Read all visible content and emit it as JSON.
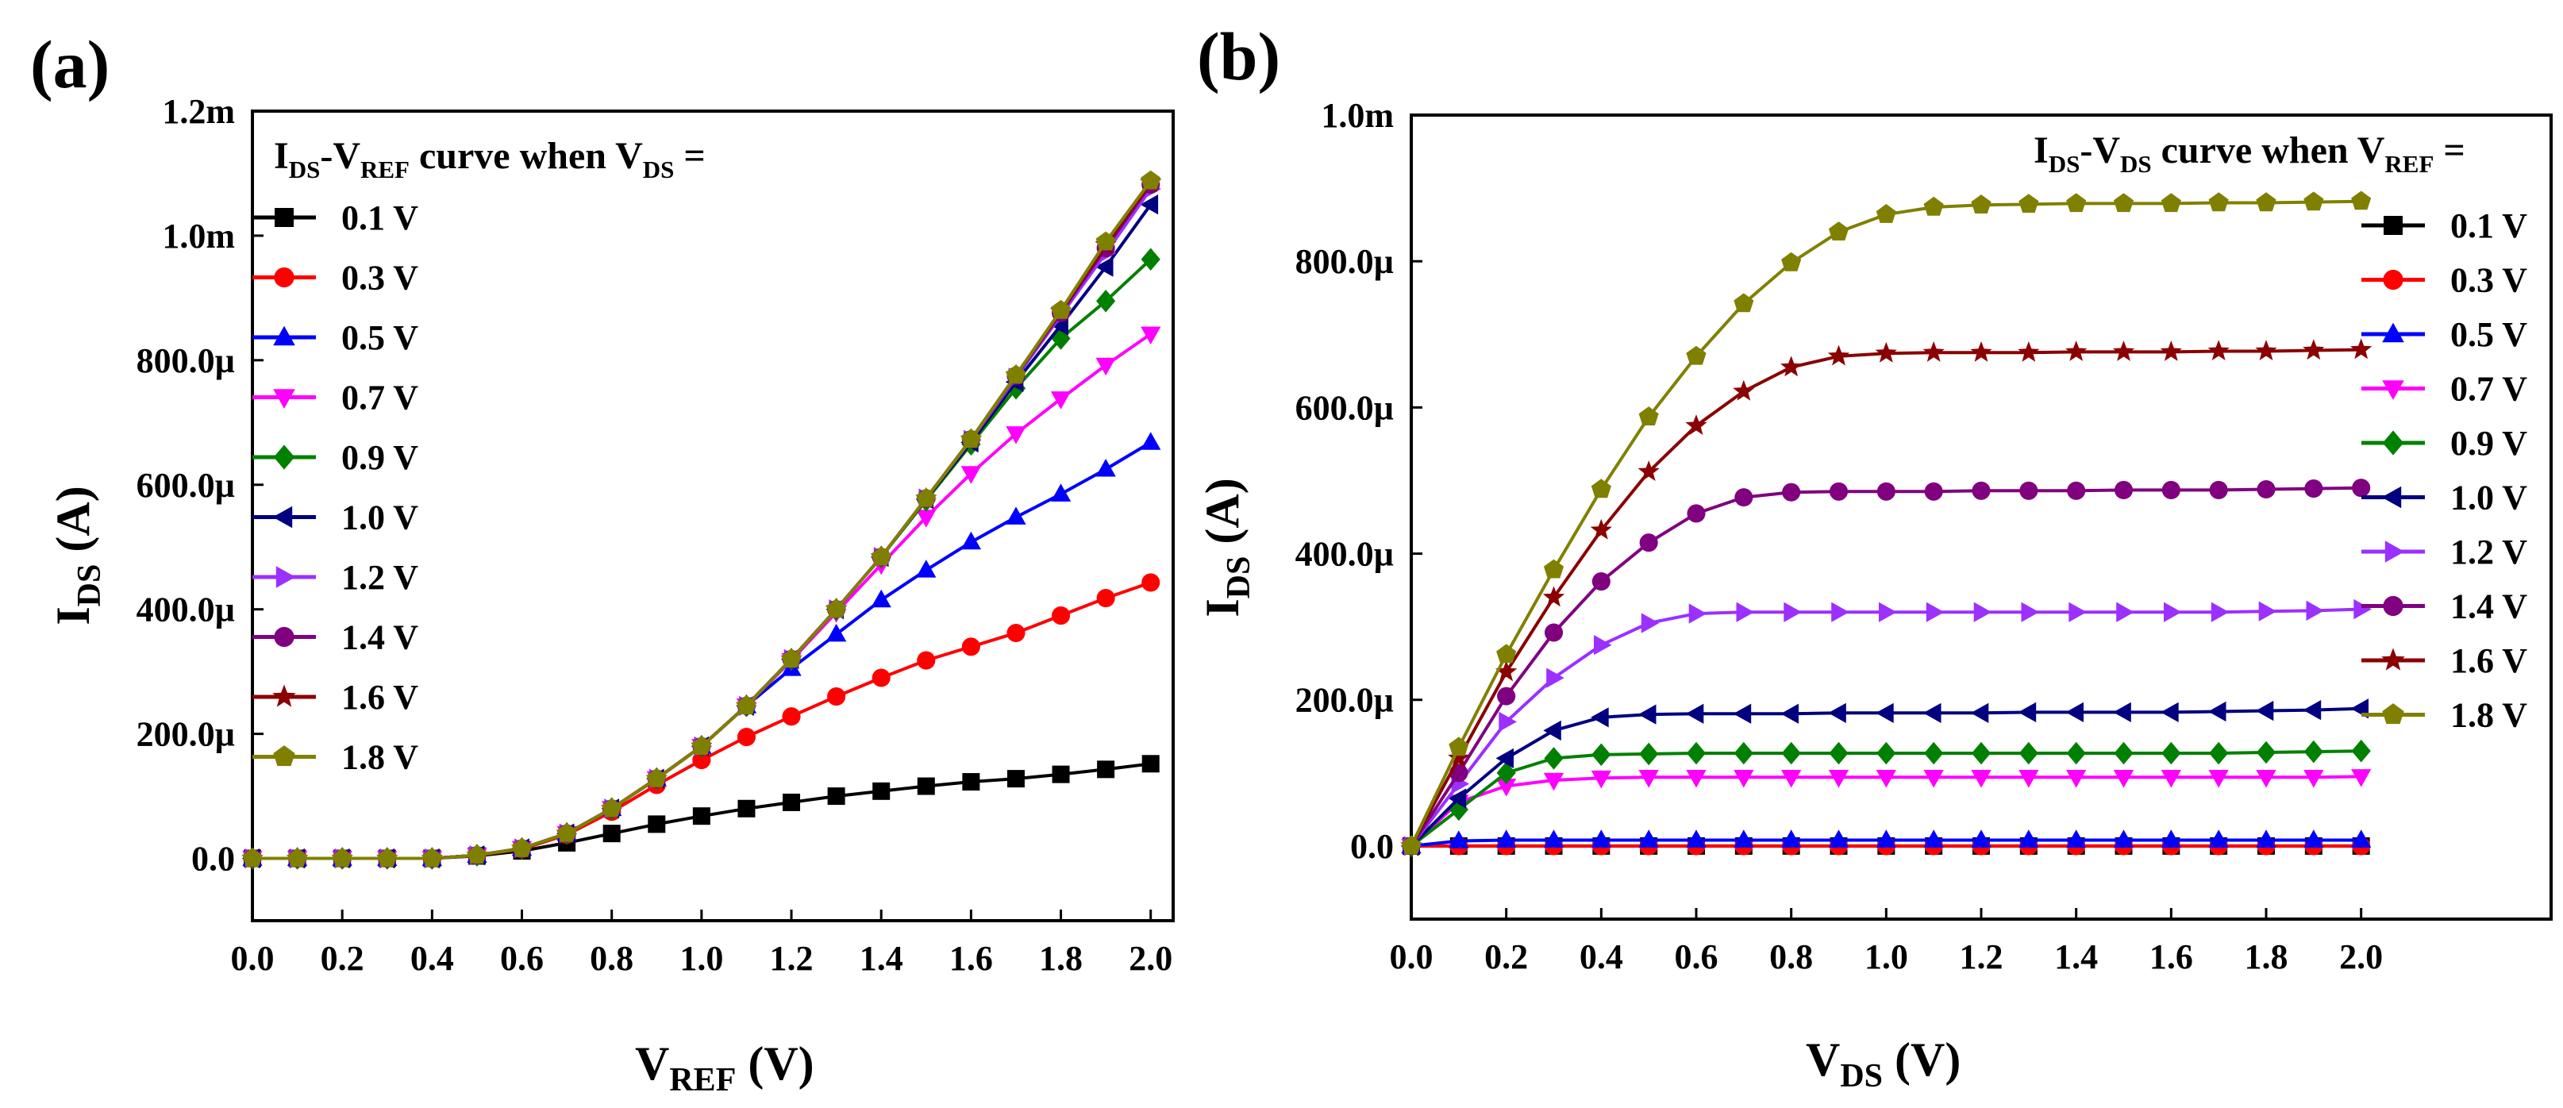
{
  "chart_data": [
    {
      "type": "line",
      "panel_label": "(a)",
      "title": {
        "pre": "I",
        "sub1": "DS",
        "mid": "-V",
        "sub2": "REF",
        "post": " curve when V",
        "sub3": "DS",
        "end": " ="
      },
      "xlabel": {
        "main": "V",
        "sub": "REF",
        "unit": " (V)"
      },
      "ylabel": {
        "main": "I",
        "sub": "DS",
        "unit": " (A)"
      },
      "xlim": [
        0,
        2.05
      ],
      "ylim": [
        -0.1,
        1.2
      ],
      "xticks": [
        0,
        0.2,
        0.4,
        0.6,
        0.8,
        1.0,
        1.2,
        1.4,
        1.6,
        1.8,
        2.0
      ],
      "xtick_labels": [
        "0.0",
        "0.2",
        "0.4",
        "0.6",
        "0.8",
        "1.0",
        "1.2",
        "1.4",
        "1.6",
        "1.8",
        "2.0"
      ],
      "yticks": [
        0,
        0.2,
        0.4,
        0.6,
        0.8,
        1.0,
        1.2
      ],
      "ytick_labels": [
        "0.0",
        "200.0µ",
        "400.0µ",
        "600.0µ",
        "800.0µ",
        "1.0m",
        "1.2m"
      ],
      "y_unit": "mA",
      "legend_position": "top-left",
      "x": [
        0,
        0.1,
        0.2,
        0.3,
        0.4,
        0.5,
        0.6,
        0.7,
        0.8,
        0.9,
        1.0,
        1.1,
        1.2,
        1.3,
        1.4,
        1.5,
        1.6,
        1.7,
        1.8,
        1.9,
        2.0
      ],
      "series": [
        {
          "name": "0.1 V",
          "color": "#000000",
          "marker": "square",
          "values": [
            0,
            0,
            0,
            0,
            0,
            0.004,
            0.012,
            0.025,
            0.04,
            0.055,
            0.068,
            0.08,
            0.09,
            0.1,
            0.108,
            0.116,
            0.123,
            0.128,
            0.135,
            0.143,
            0.152
          ]
        },
        {
          "name": "0.3 V",
          "color": "#ff0000",
          "marker": "circle",
          "values": [
            0,
            0,
            0,
            0,
            0,
            0.005,
            0.015,
            0.038,
            0.075,
            0.118,
            0.158,
            0.195,
            0.228,
            0.26,
            0.29,
            0.318,
            0.34,
            0.362,
            0.39,
            0.418,
            0.443
          ]
        },
        {
          "name": "0.5 V",
          "color": "#0000ff",
          "marker": "triangle-up",
          "values": [
            0,
            0,
            0,
            0,
            0,
            0.005,
            0.016,
            0.04,
            0.08,
            0.128,
            0.18,
            0.245,
            0.305,
            0.36,
            0.415,
            0.463,
            0.508,
            0.548,
            0.585,
            0.625,
            0.668
          ]
        },
        {
          "name": "0.7 V",
          "color": "#ff00ff",
          "marker": "triangle-down",
          "values": [
            0,
            0,
            0,
            0,
            0,
            0.005,
            0.016,
            0.04,
            0.08,
            0.128,
            0.18,
            0.245,
            0.318,
            0.395,
            0.472,
            0.548,
            0.618,
            0.682,
            0.738,
            0.792,
            0.842
          ]
        },
        {
          "name": "0.9 V",
          "color": "#008000",
          "marker": "diamond",
          "values": [
            0,
            0,
            0,
            0,
            0,
            0.005,
            0.016,
            0.04,
            0.08,
            0.128,
            0.18,
            0.245,
            0.32,
            0.4,
            0.484,
            0.575,
            0.665,
            0.755,
            0.835,
            0.895,
            0.962
          ]
        },
        {
          "name": "1.0 V",
          "color": "#000080",
          "marker": "triangle-left",
          "values": [
            0,
            0,
            0,
            0,
            0,
            0.005,
            0.016,
            0.04,
            0.08,
            0.128,
            0.18,
            0.245,
            0.32,
            0.4,
            0.484,
            0.577,
            0.668,
            0.765,
            0.856,
            0.95,
            1.05
          ]
        },
        {
          "name": "1.2 V",
          "color": "#9b30ff",
          "marker": "triangle-right",
          "values": [
            0,
            0,
            0,
            0,
            0,
            0.005,
            0.016,
            0.04,
            0.08,
            0.128,
            0.18,
            0.245,
            0.32,
            0.4,
            0.484,
            0.578,
            0.672,
            0.772,
            0.872,
            0.972,
            1.075
          ]
        },
        {
          "name": "1.4 V",
          "color": "#800080",
          "marker": "circle",
          "values": [
            0,
            0,
            0,
            0,
            0,
            0.005,
            0.016,
            0.04,
            0.08,
            0.128,
            0.18,
            0.245,
            0.32,
            0.4,
            0.484,
            0.578,
            0.673,
            0.775,
            0.876,
            0.98,
            1.082
          ]
        },
        {
          "name": "1.6 V",
          "color": "#8b0000",
          "marker": "star",
          "values": [
            0,
            0,
            0,
            0,
            0,
            0.005,
            0.016,
            0.04,
            0.08,
            0.128,
            0.18,
            0.245,
            0.32,
            0.4,
            0.484,
            0.578,
            0.673,
            0.776,
            0.878,
            0.985,
            1.085
          ]
        },
        {
          "name": "1.8 V",
          "color": "#808000",
          "marker": "pentagon",
          "values": [
            0,
            0,
            0,
            0,
            0,
            0.005,
            0.016,
            0.04,
            0.08,
            0.128,
            0.18,
            0.245,
            0.32,
            0.4,
            0.484,
            0.578,
            0.673,
            0.776,
            0.88,
            0.99,
            1.088
          ]
        }
      ]
    },
    {
      "type": "line",
      "panel_label": "(b)",
      "title": {
        "pre": "I",
        "sub1": "DS",
        "mid": "-V",
        "sub2": "DS",
        "post": " curve when V",
        "sub3": "REF",
        "end": " ="
      },
      "xlabel": {
        "main": "V",
        "sub": "DS",
        "unit": " (V)"
      },
      "ylabel": {
        "main": "I",
        "sub": "DS",
        "unit": " (A)"
      },
      "xlim": [
        0,
        2.4
      ],
      "ylim": [
        -0.1,
        1.0
      ],
      "xticks": [
        0,
        0.2,
        0.4,
        0.6,
        0.8,
        1.0,
        1.2,
        1.4,
        1.6,
        1.8,
        2.0
      ],
      "xtick_labels": [
        "0.0",
        "0.2",
        "0.4",
        "0.6",
        "0.8",
        "1.0",
        "1.2",
        "1.4",
        "1.6",
        "1.8",
        "2.0"
      ],
      "yticks": [
        0,
        0.2,
        0.4,
        0.6,
        0.8,
        1.0
      ],
      "ytick_labels": [
        "0.0",
        "200.0µ",
        "400.0µ",
        "600.0µ",
        "800.0µ",
        "1.0m"
      ],
      "y_unit": "mA",
      "legend_position": "top-right",
      "x": [
        0,
        0.1,
        0.2,
        0.3,
        0.4,
        0.5,
        0.6,
        0.7,
        0.8,
        0.9,
        1.0,
        1.1,
        1.2,
        1.3,
        1.4,
        1.5,
        1.6,
        1.7,
        1.8,
        1.9,
        2.0
      ],
      "series": [
        {
          "name": "0.1 V",
          "color": "#000000",
          "marker": "square",
          "values": [
            0,
            0,
            0,
            0,
            0,
            0,
            0,
            0,
            0,
            0,
            0,
            0,
            0,
            0,
            0,
            0,
            0,
            0,
            0,
            0,
            0
          ]
        },
        {
          "name": "0.3 V",
          "color": "#ff0000",
          "marker": "circle",
          "values": [
            0,
            0,
            0,
            0,
            0,
            0,
            0,
            0,
            0,
            0,
            0,
            0,
            0,
            0,
            0,
            0,
            0,
            0,
            0,
            0,
            0
          ]
        },
        {
          "name": "0.5 V",
          "color": "#0000ff",
          "marker": "triangle-up",
          "values": [
            0,
            0.007,
            0.008,
            0.008,
            0.008,
            0.008,
            0.008,
            0.008,
            0.008,
            0.008,
            0.008,
            0.008,
            0.008,
            0.008,
            0.008,
            0.008,
            0.008,
            0.008,
            0.008,
            0.008,
            0.008
          ]
        },
        {
          "name": "0.7 V",
          "color": "#ff00ff",
          "marker": "triangle-down",
          "values": [
            0,
            0.06,
            0.082,
            0.09,
            0.093,
            0.094,
            0.094,
            0.094,
            0.094,
            0.094,
            0.094,
            0.094,
            0.094,
            0.094,
            0.094,
            0.094,
            0.094,
            0.094,
            0.094,
            0.094,
            0.095
          ]
        },
        {
          "name": "0.9 V",
          "color": "#008000",
          "marker": "diamond",
          "values": [
            0,
            0.05,
            0.1,
            0.12,
            0.125,
            0.126,
            0.127,
            0.127,
            0.127,
            0.127,
            0.127,
            0.127,
            0.127,
            0.127,
            0.127,
            0.127,
            0.127,
            0.127,
            0.128,
            0.129,
            0.13
          ]
        },
        {
          "name": "1.0 V",
          "color": "#000080",
          "marker": "triangle-left",
          "values": [
            0,
            0.065,
            0.12,
            0.158,
            0.176,
            0.18,
            0.181,
            0.181,
            0.181,
            0.182,
            0.182,
            0.182,
            0.182,
            0.183,
            0.183,
            0.183,
            0.183,
            0.184,
            0.185,
            0.186,
            0.188
          ]
        },
        {
          "name": "1.2 V",
          "color": "#9b30ff",
          "marker": "triangle-right",
          "values": [
            0,
            0.085,
            0.17,
            0.23,
            0.275,
            0.305,
            0.318,
            0.32,
            0.32,
            0.32,
            0.32,
            0.32,
            0.32,
            0.32,
            0.32,
            0.32,
            0.32,
            0.32,
            0.321,
            0.322,
            0.324
          ]
        },
        {
          "name": "1.4 V",
          "color": "#800080",
          "marker": "circle",
          "values": [
            0,
            0.1,
            0.205,
            0.292,
            0.362,
            0.415,
            0.455,
            0.477,
            0.484,
            0.485,
            0.485,
            0.485,
            0.486,
            0.486,
            0.486,
            0.487,
            0.487,
            0.487,
            0.488,
            0.489,
            0.49
          ]
        },
        {
          "name": "1.6 V",
          "color": "#8b0000",
          "marker": "star",
          "values": [
            0,
            0.12,
            0.238,
            0.34,
            0.432,
            0.512,
            0.575,
            0.622,
            0.655,
            0.67,
            0.674,
            0.675,
            0.675,
            0.675,
            0.676,
            0.676,
            0.676,
            0.677,
            0.677,
            0.678,
            0.679
          ]
        },
        {
          "name": "1.8 V",
          "color": "#808000",
          "marker": "pentagon",
          "values": [
            0,
            0.135,
            0.262,
            0.378,
            0.488,
            0.587,
            0.67,
            0.742,
            0.798,
            0.84,
            0.864,
            0.874,
            0.877,
            0.878,
            0.879,
            0.879,
            0.879,
            0.88,
            0.88,
            0.881,
            0.882
          ]
        }
      ]
    }
  ]
}
